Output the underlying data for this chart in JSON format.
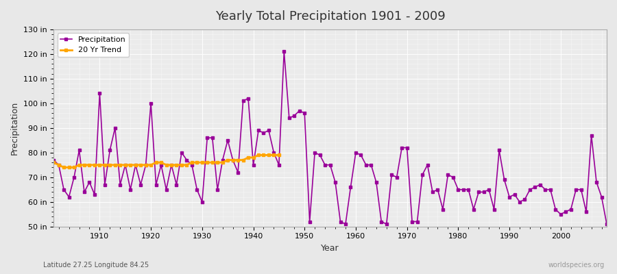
{
  "title": "Yearly Total Precipitation 1901 - 2009",
  "xlabel": "Year",
  "ylabel": "Precipitation",
  "lat_lon_label": "Latitude 27.25 Longitude 84.25",
  "source_label": "worldspecies.org",
  "bg_color": "#e8e8e8",
  "plot_bg_color": "#ebebeb",
  "precip_color": "#990099",
  "trend_color": "#FFA500",
  "ylim": [
    50,
    130
  ],
  "yticks": [
    50,
    60,
    70,
    80,
    90,
    100,
    110,
    120,
    130
  ],
  "ytick_labels": [
    "50 in",
    "60 in",
    "70 in",
    "80 in",
    "90 in",
    "100 in",
    "110 in",
    "120 in",
    "130 in"
  ],
  "years": [
    1901,
    1902,
    1903,
    1904,
    1905,
    1906,
    1907,
    1908,
    1909,
    1910,
    1911,
    1912,
    1913,
    1914,
    1915,
    1916,
    1917,
    1918,
    1919,
    1920,
    1921,
    1922,
    1923,
    1924,
    1925,
    1926,
    1927,
    1928,
    1929,
    1930,
    1931,
    1932,
    1933,
    1934,
    1935,
    1936,
    1937,
    1938,
    1939,
    1940,
    1941,
    1942,
    1943,
    1944,
    1945,
    1946,
    1947,
    1948,
    1949,
    1950,
    1951,
    1952,
    1953,
    1954,
    1955,
    1956,
    1957,
    1958,
    1959,
    1960,
    1961,
    1962,
    1963,
    1964,
    1965,
    1966,
    1967,
    1968,
    1969,
    1970,
    1971,
    1972,
    1973,
    1974,
    1975,
    1976,
    1977,
    1978,
    1979,
    1980,
    1981,
    1982,
    1983,
    1984,
    1985,
    1986,
    1987,
    1988,
    1989,
    1990,
    1991,
    1992,
    1993,
    1994,
    1995,
    1996,
    1997,
    1998,
    1999,
    2000,
    2001,
    2002,
    2003,
    2004,
    2005,
    2006,
    2007,
    2008,
    2009
  ],
  "precip": [
    77,
    75,
    65,
    62,
    70,
    81,
    64,
    68,
    63,
    104,
    67,
    81,
    90,
    67,
    75,
    65,
    75,
    67,
    75,
    100,
    67,
    75,
    65,
    75,
    67,
    80,
    77,
    75,
    65,
    60,
    86,
    86,
    65,
    77,
    85,
    77,
    72,
    101,
    102,
    75,
    89,
    88,
    89,
    80,
    75,
    121,
    94,
    95,
    97,
    96,
    52,
    80,
    79,
    75,
    75,
    68,
    52,
    51,
    66,
    80,
    79,
    75,
    75,
    68,
    52,
    51,
    71,
    70,
    82,
    82,
    52,
    52,
    71,
    75,
    64,
    65,
    57,
    71,
    70,
    65,
    65,
    65,
    57,
    64,
    64,
    65,
    57,
    81,
    69,
    62,
    63,
    60,
    61,
    65,
    66,
    67,
    65,
    65,
    57,
    55,
    56,
    57,
    65,
    65,
    56,
    87,
    68,
    62,
    51
  ],
  "trend_years": [
    1901,
    1902,
    1903,
    1904,
    1905,
    1906,
    1907,
    1908,
    1909,
    1910,
    1911,
    1912,
    1913,
    1914,
    1915,
    1916,
    1917,
    1918,
    1919,
    1920,
    1921,
    1922,
    1923,
    1924,
    1925,
    1926,
    1927,
    1928,
    1929,
    1930,
    1931,
    1932,
    1933,
    1934,
    1935,
    1936,
    1937,
    1938,
    1939,
    1940,
    1941,
    1942,
    1943,
    1944,
    1945
  ],
  "trend": [
    76,
    75,
    74,
    74,
    74,
    75,
    75,
    75,
    75,
    75,
    75,
    75,
    75,
    75,
    75,
    75,
    75,
    75,
    75,
    75,
    76,
    76,
    75,
    75,
    75,
    75,
    75,
    76,
    76,
    76,
    76,
    76,
    76,
    76,
    77,
    77,
    77,
    77,
    78,
    78,
    79,
    79,
    79,
    79,
    79
  ]
}
